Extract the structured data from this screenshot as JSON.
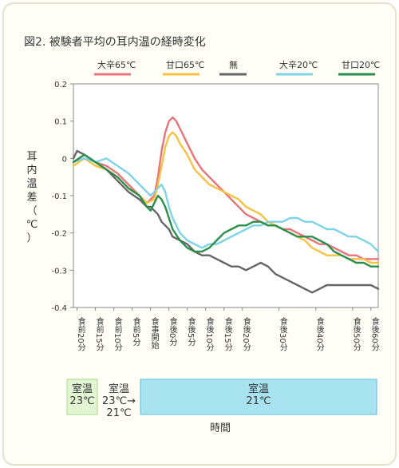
{
  "chart_data": {
    "type": "line",
    "title": "図2. 被験者平均の耳内温の経時変化",
    "ylabel": "耳内温差（℃）",
    "xlabel": "時間",
    "ylim": [
      -0.4,
      0.2
    ],
    "yticks": [
      "0.2",
      "0.1",
      "0",
      "-0.1",
      "-0.2",
      "-0.3",
      "-0.4"
    ],
    "ytick_values": [
      0.2,
      0.1,
      0,
      -0.1,
      -0.2,
      -0.3,
      -0.4
    ],
    "xlim": [
      -20,
      60
    ],
    "xticks": [
      {
        "label": "食前20分",
        "x": -20
      },
      {
        "label": "食前15分",
        "x": -15
      },
      {
        "label": "食前10分",
        "x": -10
      },
      {
        "label": "食前5分",
        "x": -5
      },
      {
        "label": "食事開始",
        "x": 0
      },
      {
        "label": "食後0分",
        "x": 5
      },
      {
        "label": "食後5分",
        "x": 10
      },
      {
        "label": "食後10分",
        "x": 15
      },
      {
        "label": "食後15分",
        "x": 20
      },
      {
        "label": "食後20分",
        "x": 25
      },
      {
        "label": "食後30分",
        "x": 35
      },
      {
        "label": "食後40分",
        "x": 45
      },
      {
        "label": "食後50分",
        "x": 55
      },
      {
        "label": "食後60分",
        "x": 60
      }
    ],
    "grid": false,
    "legend_position": "top",
    "series": [
      {
        "name": "大辛65℃",
        "color": "#e8747a",
        "x": [
          -21,
          -18,
          -15,
          -12,
          -9,
          -6,
          -3,
          -1,
          1,
          2,
          3,
          4,
          5,
          6,
          7,
          8,
          10,
          12,
          14,
          16,
          18,
          20,
          22,
          24,
          26,
          28,
          30,
          32,
          34,
          36,
          38,
          40,
          42,
          44,
          46,
          48,
          50,
          52,
          54,
          56,
          58,
          60,
          62
        ],
        "y": [
          -0.01,
          0.01,
          -0.01,
          -0.02,
          -0.04,
          -0.07,
          -0.1,
          -0.12,
          -0.1,
          -0.05,
          0.02,
          0.07,
          0.1,
          0.11,
          0.1,
          0.08,
          0.04,
          0.0,
          -0.03,
          -0.05,
          -0.07,
          -0.09,
          -0.11,
          -0.13,
          -0.15,
          -0.16,
          -0.17,
          -0.18,
          -0.18,
          -0.19,
          -0.19,
          -0.2,
          -0.21,
          -0.22,
          -0.23,
          -0.23,
          -0.24,
          -0.25,
          -0.26,
          -0.26,
          -0.27,
          -0.27,
          -0.27
        ]
      },
      {
        "name": "甘口65℃",
        "color": "#f5c242",
        "x": [
          -21,
          -18,
          -15,
          -12,
          -9,
          -6,
          -3,
          -1,
          1,
          2,
          3,
          4,
          5,
          6,
          7,
          8,
          10,
          12,
          14,
          16,
          18,
          20,
          22,
          24,
          26,
          28,
          30,
          32,
          34,
          36,
          38,
          40,
          42,
          44,
          46,
          48,
          50,
          52,
          54,
          56,
          58,
          60,
          62
        ],
        "y": [
          -0.02,
          0.0,
          -0.02,
          -0.03,
          -0.05,
          -0.08,
          -0.1,
          -0.12,
          -0.11,
          -0.07,
          -0.02,
          0.03,
          0.06,
          0.07,
          0.06,
          0.04,
          0.01,
          -0.03,
          -0.05,
          -0.07,
          -0.08,
          -0.09,
          -0.1,
          -0.11,
          -0.13,
          -0.14,
          -0.15,
          -0.17,
          -0.18,
          -0.19,
          -0.2,
          -0.21,
          -0.22,
          -0.24,
          -0.25,
          -0.26,
          -0.26,
          -0.26,
          -0.27,
          -0.27,
          -0.27,
          -0.28,
          -0.28
        ]
      },
      {
        "name": "無",
        "color": "#666666",
        "x": [
          -21,
          -20,
          -18,
          -15,
          -12,
          -9,
          -6,
          -3,
          -1,
          0,
          1,
          2,
          3,
          4,
          5,
          6,
          8,
          10,
          12,
          14,
          16,
          18,
          20,
          22,
          24,
          26,
          28,
          30,
          32,
          34,
          36,
          38,
          40,
          42,
          44,
          46,
          48,
          50,
          52,
          54,
          56,
          58,
          60,
          62
        ],
        "y": [
          0.0,
          0.02,
          0.01,
          -0.01,
          -0.03,
          -0.06,
          -0.09,
          -0.11,
          -0.13,
          -0.13,
          -0.14,
          -0.15,
          -0.17,
          -0.18,
          -0.19,
          -0.21,
          -0.22,
          -0.23,
          -0.25,
          -0.26,
          -0.26,
          -0.27,
          -0.28,
          -0.29,
          -0.29,
          -0.3,
          -0.29,
          -0.28,
          -0.29,
          -0.31,
          -0.32,
          -0.33,
          -0.34,
          -0.35,
          -0.36,
          -0.35,
          -0.34,
          -0.34,
          -0.34,
          -0.34,
          -0.34,
          -0.34,
          -0.34,
          -0.35
        ]
      },
      {
        "name": "大辛20℃",
        "color": "#7fd3e6",
        "x": [
          -21,
          -18,
          -15,
          -12,
          -9,
          -6,
          -3,
          -1,
          0,
          1,
          2,
          3,
          4,
          5,
          6,
          8,
          10,
          12,
          14,
          16,
          18,
          20,
          22,
          24,
          26,
          28,
          30,
          32,
          34,
          36,
          38,
          40,
          42,
          44,
          46,
          48,
          50,
          52,
          54,
          56,
          58,
          60,
          62
        ],
        "y": [
          -0.01,
          0.0,
          -0.01,
          0.0,
          -0.02,
          -0.04,
          -0.07,
          -0.09,
          -0.1,
          -0.09,
          -0.08,
          -0.07,
          -0.09,
          -0.13,
          -0.16,
          -0.2,
          -0.22,
          -0.23,
          -0.24,
          -0.23,
          -0.23,
          -0.22,
          -0.21,
          -0.2,
          -0.19,
          -0.18,
          -0.18,
          -0.17,
          -0.17,
          -0.17,
          -0.16,
          -0.16,
          -0.17,
          -0.17,
          -0.18,
          -0.19,
          -0.19,
          -0.2,
          -0.21,
          -0.21,
          -0.22,
          -0.23,
          -0.25
        ]
      },
      {
        "name": "甘口20℃",
        "color": "#2a8f4a",
        "x": [
          -21,
          -18,
          -15,
          -12,
          -9,
          -6,
          -3,
          -1,
          0,
          1,
          2,
          3,
          4,
          5,
          6,
          8,
          10,
          12,
          14,
          16,
          18,
          20,
          22,
          24,
          26,
          28,
          30,
          32,
          34,
          36,
          38,
          40,
          42,
          44,
          46,
          48,
          50,
          52,
          54,
          56,
          58,
          60,
          62
        ],
        "y": [
          -0.01,
          0.01,
          -0.01,
          -0.03,
          -0.05,
          -0.08,
          -0.1,
          -0.13,
          -0.14,
          -0.12,
          -0.1,
          -0.11,
          -0.13,
          -0.16,
          -0.19,
          -0.22,
          -0.24,
          -0.25,
          -0.25,
          -0.24,
          -0.22,
          -0.2,
          -0.19,
          -0.18,
          -0.18,
          -0.17,
          -0.17,
          -0.18,
          -0.18,
          -0.19,
          -0.2,
          -0.21,
          -0.21,
          -0.21,
          -0.22,
          -0.23,
          -0.25,
          -0.26,
          -0.27,
          -0.28,
          -0.28,
          -0.29,
          -0.29
        ]
      }
    ],
    "annotations": [
      {
        "label": "室温\n23℃",
        "fill": "#e2f6d4",
        "stroke": "#a8d98a"
      },
      {
        "label": "室温\n23℃→\n21℃",
        "fill": "none",
        "stroke": "none"
      },
      {
        "label": "室温\n21℃",
        "fill": "#a8e3f0",
        "stroke": "#5bbfd9"
      }
    ]
  }
}
